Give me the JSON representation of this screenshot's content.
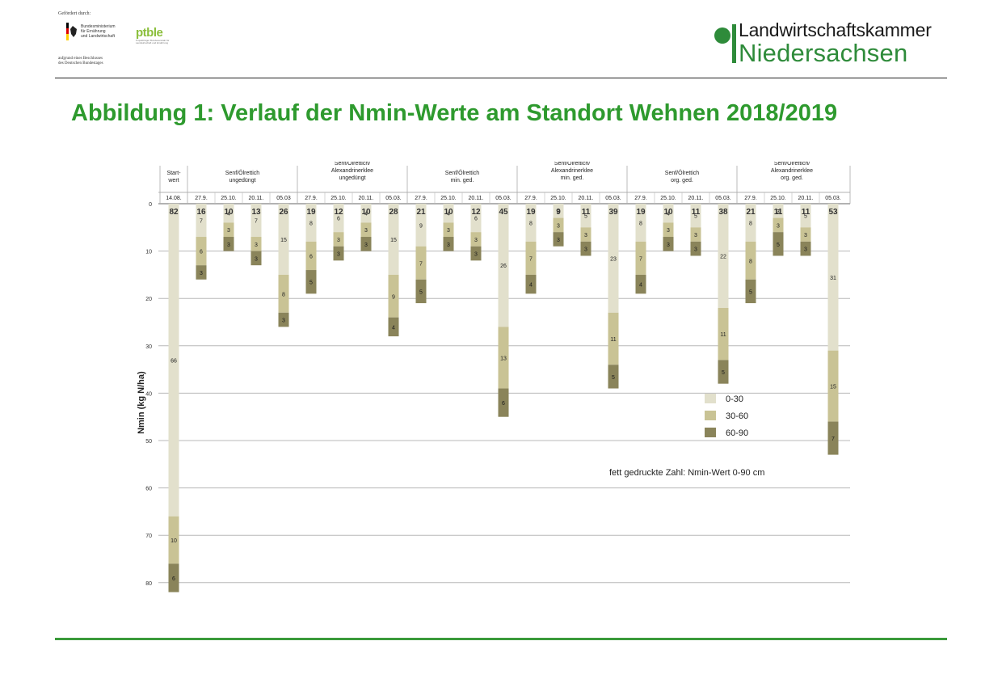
{
  "header": {
    "funding_label": "Gefördert durch:",
    "ministry": [
      "Bundesministerium",
      "für Ernährung",
      "und Landwirtschaft"
    ],
    "ptble": "ptble",
    "ptble_sub": "Projektträger Bundesanstalt für Landwirtschaft und Ernährung",
    "bundestag": [
      "aufgrund eines Beschlusses",
      "des Deutschen Bundestages"
    ],
    "org_line1": "Landwirtschaftskammer",
    "org_line2": "Niedersachsen",
    "brand_color": "#2e8b3a"
  },
  "page_title": "Abbildung 1: Verlauf der Nmin-Werte am Standort Wehnen 2018/2019",
  "chart_data": {
    "type": "bar",
    "stacked": true,
    "inverted_y": true,
    "ylabel": "Nmin (kg N/ha)",
    "ylim": [
      0,
      85
    ],
    "yticks": [
      0,
      10,
      20,
      30,
      40,
      50,
      60,
      70,
      80
    ],
    "grid": true,
    "groups": [
      {
        "label": [
          "Start-",
          "wert"
        ],
        "dates": [
          "14.08."
        ]
      },
      {
        "label": [
          "Senf/Ölrettich",
          "ungedüngt"
        ],
        "dates": [
          "27.9.",
          "25.10.",
          "20.11.",
          "05.03"
        ]
      },
      {
        "label": [
          "Senf/Ölrettich/",
          "Alexandrinerklee",
          "ungedüngt"
        ],
        "dates": [
          "27.9.",
          "25.10.",
          "20.11.",
          "05.03."
        ]
      },
      {
        "label": [
          "Senf/Ölrettich",
          "min. ged."
        ],
        "dates": [
          "27.9.",
          "25.10.",
          "20.11.",
          "05.03."
        ]
      },
      {
        "label": [
          "Senf/Ölrettich/",
          "Alexandrinerklee",
          "min. ged."
        ],
        "dates": [
          "27.9.",
          "25.10.",
          "20.11.",
          "05.03."
        ]
      },
      {
        "label": [
          "Senf/Ölrettich",
          "org. ged."
        ],
        "dates": [
          "27.9.",
          "25.10.",
          "20.11.",
          "05.03."
        ]
      },
      {
        "label": [
          "Senf/Ölrettich/",
          "Alexandrinerklee",
          "org. ged."
        ],
        "dates": [
          "27.9.",
          "25.10.",
          "20.11.",
          "05.03."
        ]
      }
    ],
    "series": [
      {
        "name": "0-30",
        "color": "#e2e0cc",
        "values": [
          66,
          7,
          4,
          7,
          15,
          8,
          6,
          4,
          15,
          9,
          4,
          6,
          26,
          8,
          3,
          5,
          23,
          8,
          4,
          5,
          22,
          8,
          3,
          5,
          31
        ]
      },
      {
        "name": "30-60",
        "color": "#c9c395",
        "values": [
          10,
          6,
          3,
          3,
          8,
          6,
          3,
          3,
          9,
          7,
          3,
          3,
          13,
          7,
          3,
          3,
          11,
          7,
          3,
          3,
          11,
          8,
          3,
          3,
          15
        ]
      },
      {
        "name": "60-90",
        "color": "#8a845a",
        "values": [
          6,
          3,
          3,
          3,
          3,
          5,
          3,
          3,
          4,
          5,
          3,
          3,
          6,
          4,
          3,
          3,
          5,
          4,
          3,
          3,
          5,
          5,
          5,
          3,
          7
        ]
      }
    ],
    "totals": [
      82,
      16,
      10,
      13,
      26,
      19,
      12,
      10,
      28,
      21,
      10,
      12,
      45,
      19,
      9,
      11,
      39,
      19,
      10,
      11,
      38,
      21,
      11,
      11,
      53
    ],
    "legend_position": "right",
    "annotation": "fett gedruckte Zahl: Nmin-Wert 0-90 cm"
  }
}
